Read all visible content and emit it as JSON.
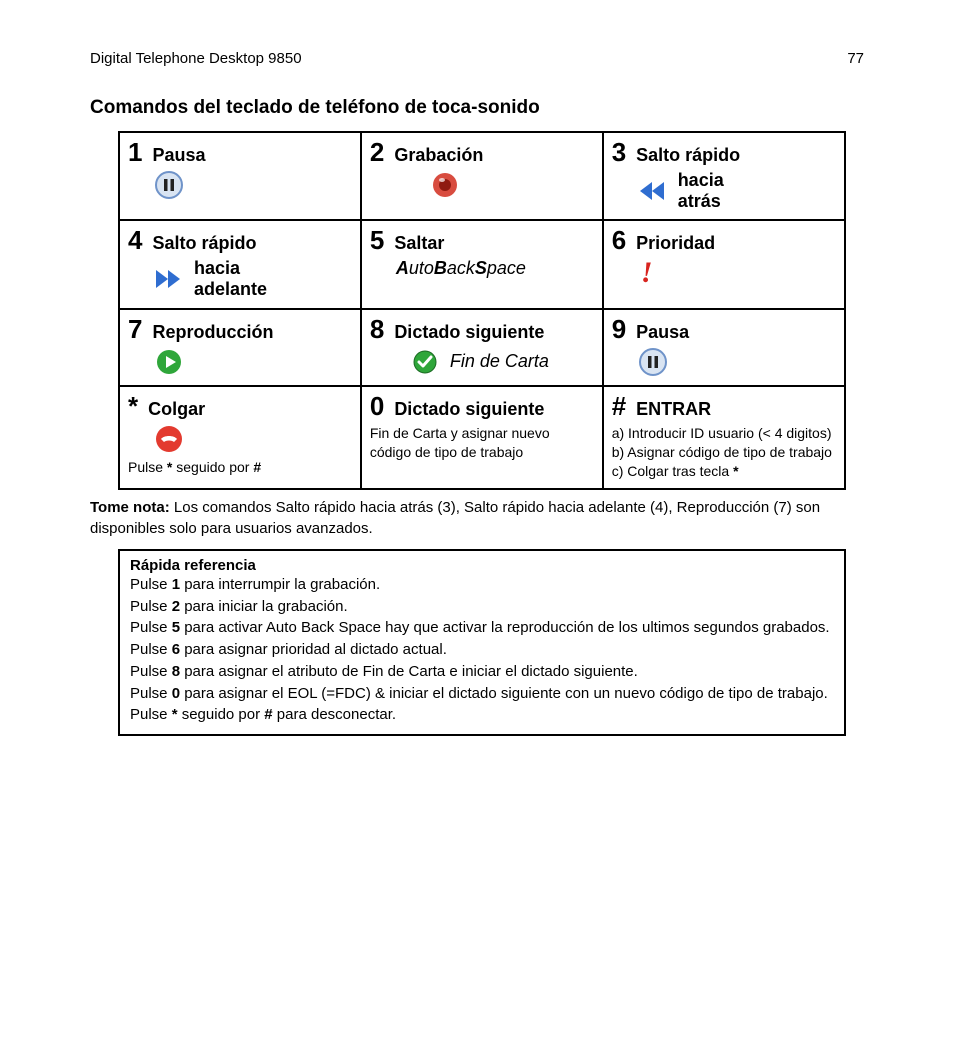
{
  "header": {
    "product": "Digital Telephone Desktop 9850",
    "page": "77"
  },
  "section_title": "Comandos del teclado de teléfono de toca-sonido",
  "colors": {
    "border": "#000000",
    "text": "#000000",
    "pause_bg": "#d9e4f2",
    "pause_ring": "#6f93c9",
    "record_outer": "#d84c3f",
    "record_inner": "#b52015",
    "rewind": "#2f6dd0",
    "ffwd": "#2f6dd0",
    "play_outer": "#2fa63a",
    "play_inner": "#ffffff",
    "check_outer": "#2fa63a",
    "hangup": "#e33a2f",
    "priority": "#d8241f"
  },
  "cells": {
    "c1": {
      "num": "1",
      "label": "Pausa",
      "icon": "pause"
    },
    "c2": {
      "num": "2",
      "label": "Grabación",
      "icon": "record"
    },
    "c3": {
      "num": "3",
      "label": "Salto rápido",
      "sub": "hacia atrás",
      "icon": "rewind"
    },
    "c4": {
      "num": "4",
      "label": "Salto rápido",
      "sub": "hacia adelante",
      "icon": "ffwd"
    },
    "c5": {
      "num": "5",
      "label": "Saltar",
      "italic_abs": {
        "a": "A",
        "uto": "uto",
        "b": "B",
        "ack": "ack",
        "s": "S",
        "pace": "pace"
      }
    },
    "c6": {
      "num": "6",
      "label": "Prioridad",
      "icon": "priority"
    },
    "c7": {
      "num": "7",
      "label": "Reproducción",
      "icon": "play"
    },
    "c8": {
      "num": "8",
      "label": "Dictado siguiente",
      "icon": "check",
      "italic": "Fin de Carta"
    },
    "c9": {
      "num": "9",
      "label": "Pausa",
      "icon": "pause"
    },
    "c10": {
      "num": "*",
      "label": "Colgar",
      "icon": "hangup",
      "small_pre": "Pulse ",
      "small_b1": "*",
      "small_mid": " seguido por ",
      "small_b2": "#"
    },
    "c11": {
      "num": "0",
      "label": "Dictado siguiente",
      "small": "Fin de Carta y asignar nuevo código de tipo de trabajo"
    },
    "c12": {
      "num": "#",
      "label": "ENTRAR",
      "small": "a) Introducir ID usuario (< 4 digitos)\nb) Asignar código de tipo de trabajo c) Colgar tras tecla ",
      "small_b": "*"
    }
  },
  "note": {
    "lead": "Tome nota:",
    "text": " Los comandos Salto rápido hacia atrás (3), Salto rápido hacia adelante (4), Reproducción (7) son disponibles solo para usuarios avanzados."
  },
  "ref": {
    "title": "Rápida referencia",
    "lines": [
      {
        "pre": "Pulse ",
        "b": "1",
        "post": " para interrumpir la grabación."
      },
      {
        "pre": "Pulse ",
        "b": "2",
        "post": " para iniciar la grabación."
      },
      {
        "pre": "Pulse ",
        "b": "5",
        "post": " para activar Auto Back Space hay que activar la reproducción de los ultimos segundos grabados."
      },
      {
        "pre": "Pulse ",
        "b": "6",
        "post": " para asignar prioridad al dictado actual."
      },
      {
        "pre": "Pulse ",
        "b": "8",
        "post": " para asignar el atributo de Fin de Carta e iniciar el dictado siguiente."
      },
      {
        "pre": "Pulse ",
        "b": "0",
        "post": " para asignar el EOL (=FDC) & iniciar el dictado siguiente con un nuevo código de tipo de trabajo."
      },
      {
        "pre": "Pulse ",
        "b": "*",
        "mid": " seguido por ",
        "b2": "#",
        "post": " para desconectar."
      }
    ]
  }
}
